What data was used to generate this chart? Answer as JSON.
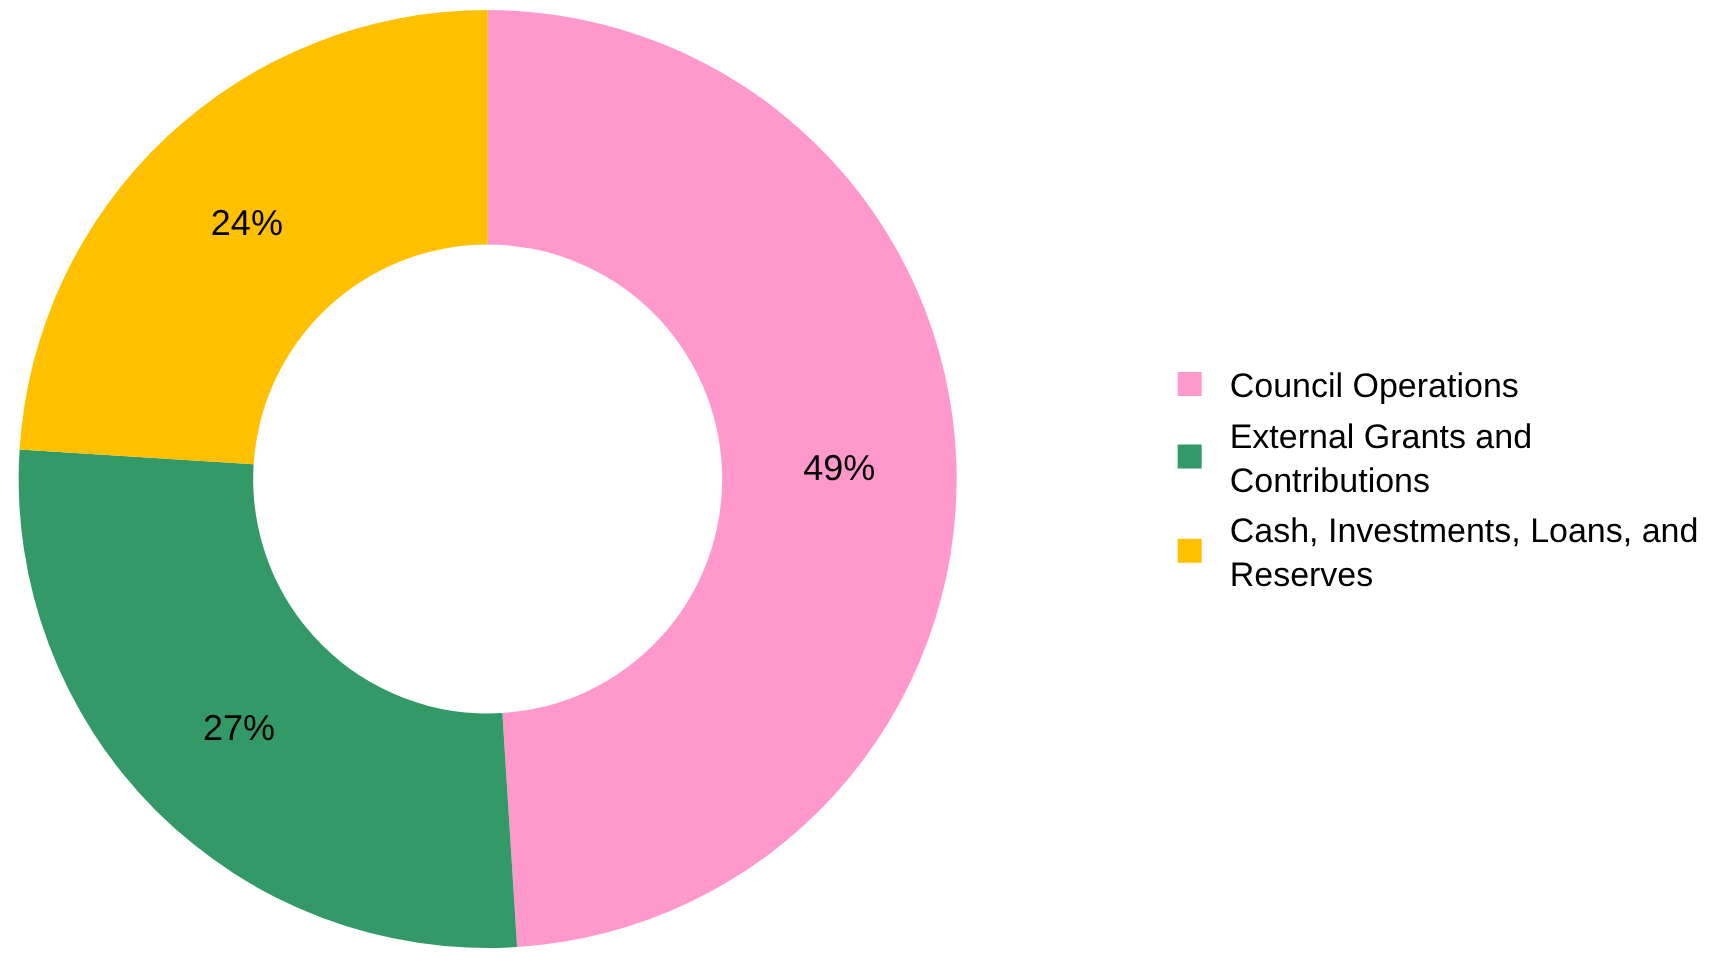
{
  "chart_data": {
    "type": "donut",
    "categories": [
      "Council Operations",
      "External Grants and Contributions",
      "Cash, Investments, Loans, and Reserves"
    ],
    "values": [
      49,
      27,
      24
    ],
    "colors": [
      "#ff99cc",
      "#339966",
      "#ffc000"
    ],
    "value_labels": [
      "49%",
      "27%",
      "24%"
    ],
    "legend": "right"
  }
}
